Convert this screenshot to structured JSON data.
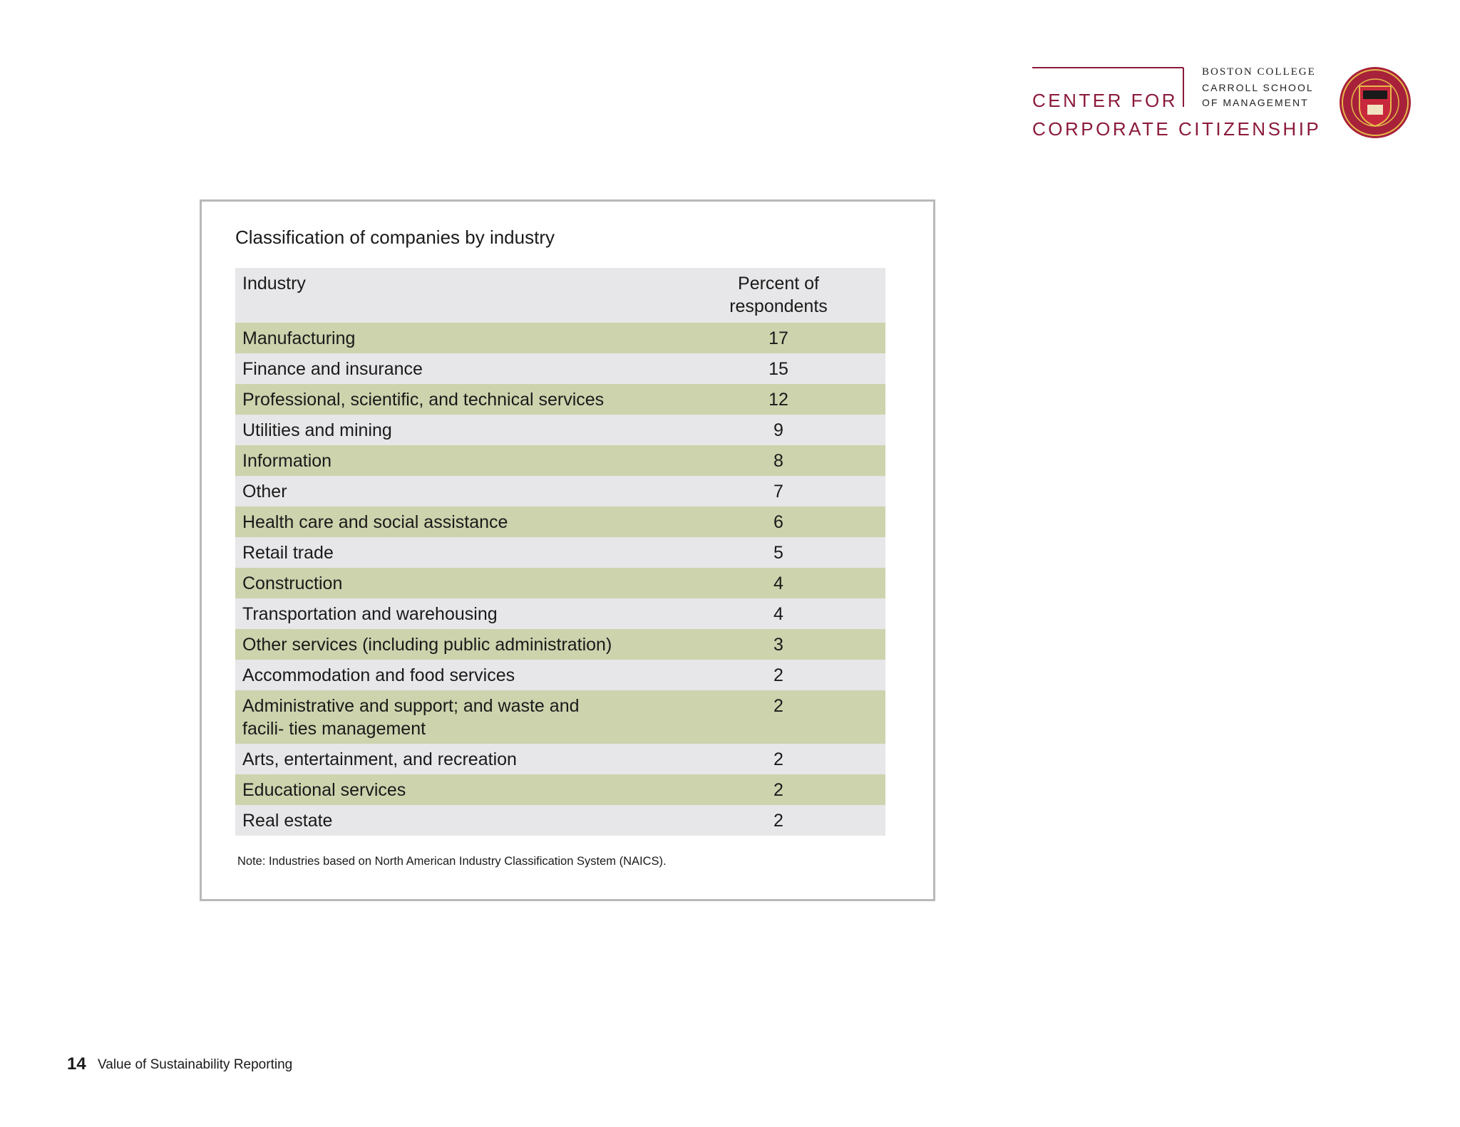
{
  "header": {
    "institution": [
      "BOSTON COLLEGE",
      "CARROLL SCHOOL",
      "OF MANAGEMENT"
    ],
    "center": [
      "CENTER FOR",
      "CORPORATE CITIZENSHIP"
    ]
  },
  "table": {
    "title": "Classification of companies by industry",
    "header": [
      "Industry",
      "Percent of respondents"
    ],
    "rows": [
      [
        "Manufacturing",
        17
      ],
      [
        "Finance and insurance",
        15
      ],
      [
        "Professional, scientific, and technical services",
        12
      ],
      [
        "Utilities and mining",
        9
      ],
      [
        "Information",
        8
      ],
      [
        "Other",
        7
      ],
      [
        "Health care and social assistance",
        6
      ],
      [
        "Retail trade",
        5
      ],
      [
        "Construction",
        4
      ],
      [
        "Transportation and warehousing",
        4
      ],
      [
        "Other services (including public administration)",
        3
      ],
      [
        "Accommodation and food services",
        2
      ],
      [
        "Administrative and support; and waste and facili- ties management",
        2
      ],
      [
        "Arts, entertainment, and recreation",
        2
      ],
      [
        "Educational services",
        2
      ],
      [
        "Real estate",
        2
      ]
    ],
    "note": "Note: Industries based on North American Industry Classification System (NAICS)."
  },
  "footer": {
    "page": 14,
    "title": "Value of Sustainability Reporting"
  }
}
